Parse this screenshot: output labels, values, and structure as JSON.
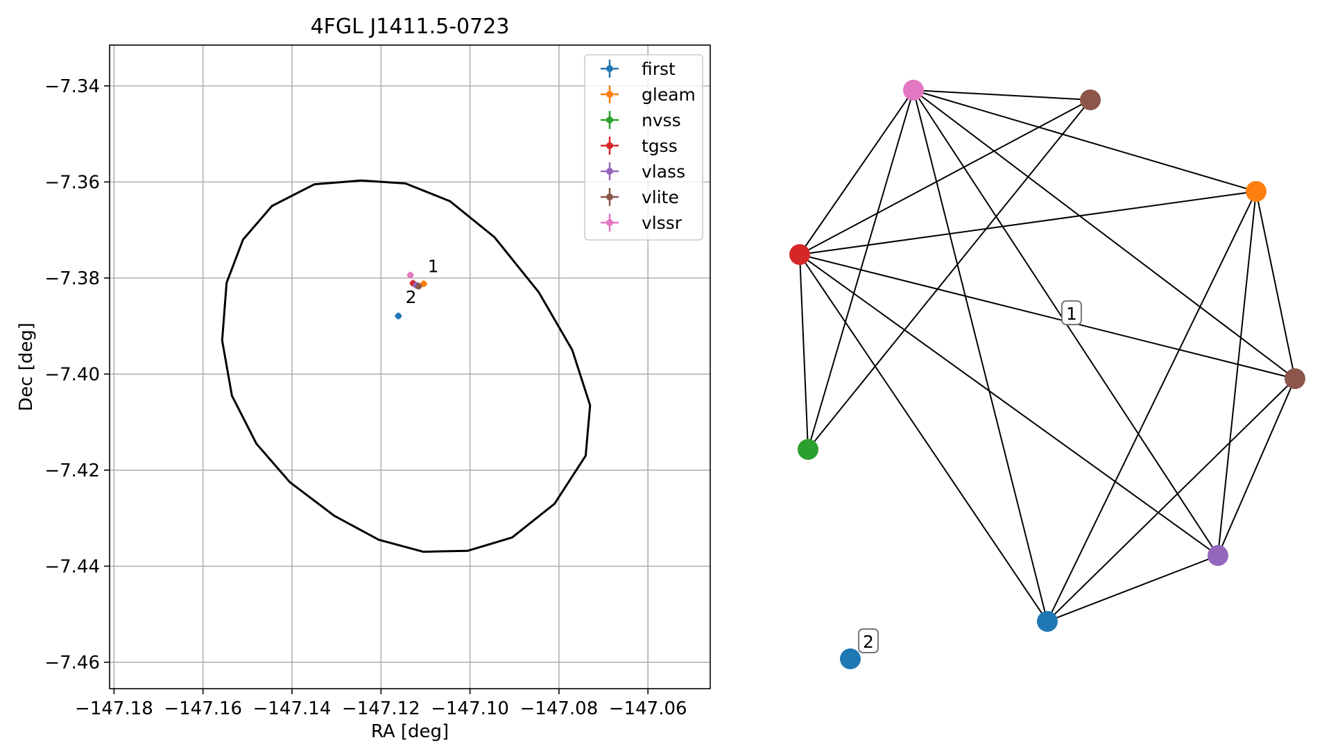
{
  "chart_data": [
    {
      "type": "scatter",
      "title": "4FGL J1411.5-0723",
      "xlabel": "RA [deg]",
      "ylabel": "Dec [deg]",
      "xlim": [
        -147.181,
        -147.046
      ],
      "ylim": [
        -7.4655,
        -7.3315
      ],
      "x_ticks": [
        -147.18,
        -147.16,
        -147.14,
        -147.12,
        -147.1,
        -147.08,
        -147.06
      ],
      "x_tick_labels": [
        "−147.18",
        "−147.16",
        "−147.14",
        "−147.12",
        "−147.10",
        "−147.08",
        "−147.06"
      ],
      "y_ticks": [
        -7.34,
        -7.36,
        -7.38,
        -7.4,
        -7.42,
        -7.44,
        -7.46
      ],
      "y_tick_labels": [
        "−7.34",
        "−7.36",
        "−7.38",
        "−7.40",
        "−7.42",
        "−7.44",
        "−7.46"
      ],
      "grid": true,
      "legend_position": "top-right",
      "series": [
        {
          "name": "first",
          "color": "#1f77b4",
          "points": [
            {
              "x": -147.1161,
              "y": -7.3879
            }
          ]
        },
        {
          "name": "gleam",
          "color": "#ff7f0e",
          "points": [
            {
              "x": -147.1104,
              "y": -7.3812
            }
          ]
        },
        {
          "name": "nvss",
          "color": "#2ca02c",
          "points": [
            {
              "x": -147.1118,
              "y": -7.3816
            }
          ]
        },
        {
          "name": "tgss",
          "color": "#d62728",
          "points": [
            {
              "x": -147.1128,
              "y": -7.3811
            }
          ]
        },
        {
          "name": "vlass",
          "color": "#9467bd",
          "points": [
            {
              "x": -147.1121,
              "y": -7.3815
            }
          ]
        },
        {
          "name": "vlite",
          "color": "#8c564b",
          "points": [
            {
              "x": -147.1115,
              "y": -7.3817
            }
          ]
        },
        {
          "name": "vlssr",
          "color": "#e377c2",
          "points": [
            {
              "x": -147.1134,
              "y": -7.3794
            }
          ]
        }
      ],
      "annotations": [
        {
          "text": "1",
          "x": -147.1095,
          "y": -7.3788
        },
        {
          "text": "2",
          "x": -147.1145,
          "y": -7.3852
        }
      ],
      "ellipse": {
        "center_x": -147.1135,
        "center_y": -7.4004,
        "points": [
          [
            -147.1245,
            -7.3597
          ],
          [
            -147.1145,
            -7.3603
          ],
          [
            -147.1045,
            -7.364
          ],
          [
            -147.0945,
            -7.3715
          ],
          [
            -147.0845,
            -7.383
          ],
          [
            -147.077,
            -7.395
          ],
          [
            -147.073,
            -7.4065
          ],
          [
            -147.074,
            -7.417
          ],
          [
            -147.081,
            -7.427
          ],
          [
            -147.0905,
            -7.434
          ],
          [
            -147.1005,
            -7.4368
          ],
          [
            -147.1105,
            -7.437
          ],
          [
            -147.1205,
            -7.4345
          ],
          [
            -147.1305,
            -7.4295
          ],
          [
            -147.1405,
            -7.4225
          ],
          [
            -147.148,
            -7.4145
          ],
          [
            -147.1535,
            -7.4045
          ],
          [
            -147.1557,
            -7.393
          ],
          [
            -147.1547,
            -7.381
          ],
          [
            -147.151,
            -7.372
          ],
          [
            -147.1445,
            -7.365
          ],
          [
            -147.135,
            -7.3605
          ],
          [
            -147.1245,
            -7.3597
          ]
        ],
        "color": "#000000"
      }
    },
    {
      "type": "network",
      "nodes": [
        {
          "id": "vlssr",
          "color": "#e377c2"
        },
        {
          "id": "vlite_top",
          "color": "#8c564b"
        },
        {
          "id": "gleam",
          "color": "#ff7f0e"
        },
        {
          "id": "tgss",
          "color": "#d62728"
        },
        {
          "id": "vlite_right",
          "color": "#8c564b"
        },
        {
          "id": "nvss",
          "color": "#2ca02c"
        },
        {
          "id": "vlass",
          "color": "#9467bd"
        },
        {
          "id": "first_center",
          "color": "#1f77b4"
        },
        {
          "id": "first_isolated",
          "color": "#1f77b4"
        }
      ],
      "edges": [
        [
          "vlssr",
          "vlite_top"
        ],
        [
          "vlssr",
          "gleam"
        ],
        [
          "vlssr",
          "tgss"
        ],
        [
          "vlssr",
          "vlite_right"
        ],
        [
          "vlssr",
          "nvss"
        ],
        [
          "vlssr",
          "vlass"
        ],
        [
          "vlssr",
          "first_center"
        ],
        [
          "vlite_top",
          "tgss"
        ],
        [
          "vlite_top",
          "nvss"
        ],
        [
          "gleam",
          "tgss"
        ],
        [
          "gleam",
          "vlite_right"
        ],
        [
          "gleam",
          "vlass"
        ],
        [
          "gleam",
          "first_center"
        ],
        [
          "tgss",
          "vlite_right"
        ],
        [
          "tgss",
          "nvss"
        ],
        [
          "tgss",
          "vlass"
        ],
        [
          "tgss",
          "first_center"
        ],
        [
          "vlite_right",
          "vlass"
        ],
        [
          "vlite_right",
          "first_center"
        ],
        [
          "vlass",
          "first_center"
        ]
      ],
      "group_labels": [
        {
          "text": "1"
        },
        {
          "text": "2"
        }
      ]
    }
  ]
}
